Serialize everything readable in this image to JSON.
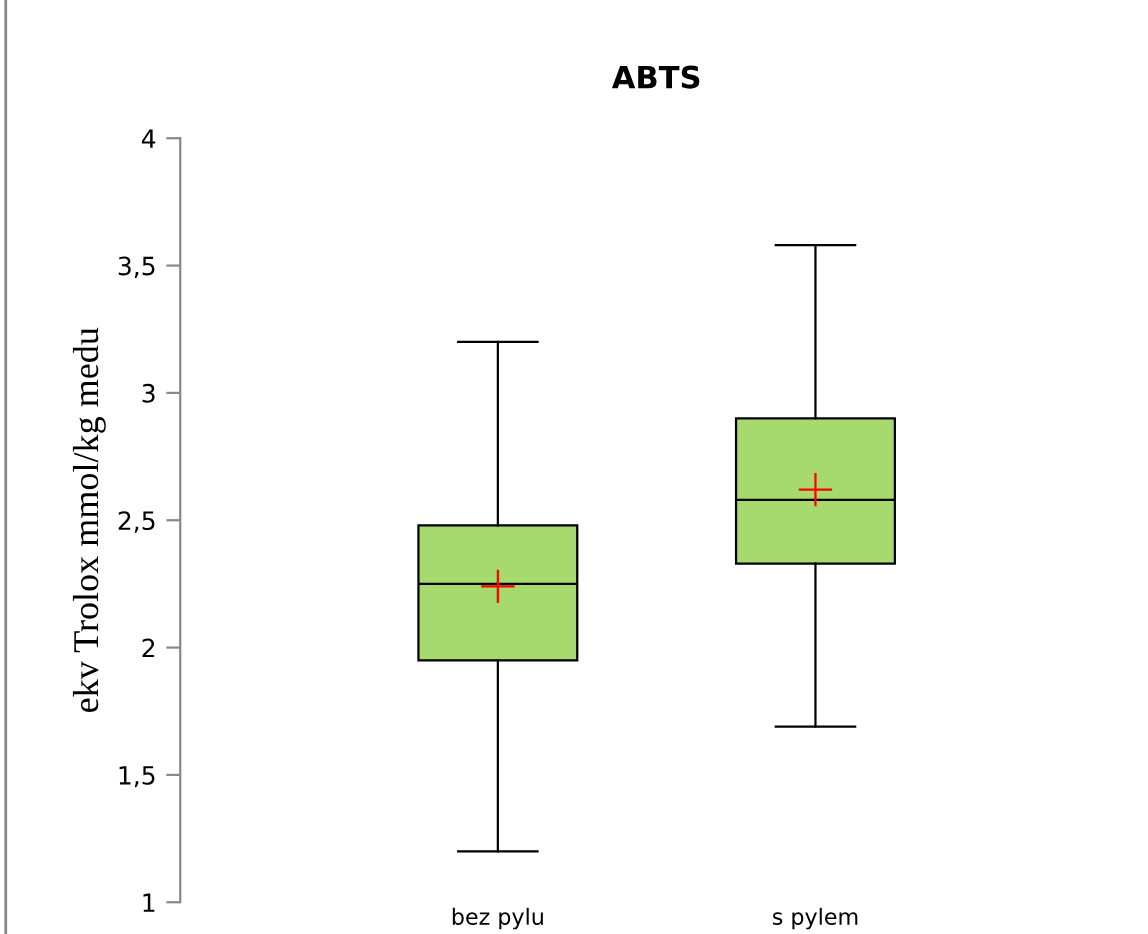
{
  "chart_data": {
    "type": "box",
    "title": "ABTS",
    "ylabel": "ekv Trolox mmol/kg medu",
    "categories": [
      "bez pylu",
      "s pylem"
    ],
    "series": [
      {
        "color": "#a6da6e",
        "boxes": [
          {
            "low": 1.2,
            "q1": 1.95,
            "median": 2.25,
            "q3": 2.48,
            "high": 3.2,
            "mean": 2.24
          },
          {
            "low": 1.69,
            "q1": 2.33,
            "median": 2.58,
            "q3": 2.9,
            "high": 3.58,
            "mean": 2.62
          }
        ]
      }
    ],
    "ylim": [
      1,
      4
    ],
    "yticks": [
      1,
      {
        "value": 1.5,
        "label": "1,5"
      },
      2,
      {
        "value": 2.5,
        "label": "2,5"
      },
      3,
      {
        "value": 3.5,
        "label": "3,5"
      },
      4
    ],
    "grid": false,
    "legend": false
  }
}
